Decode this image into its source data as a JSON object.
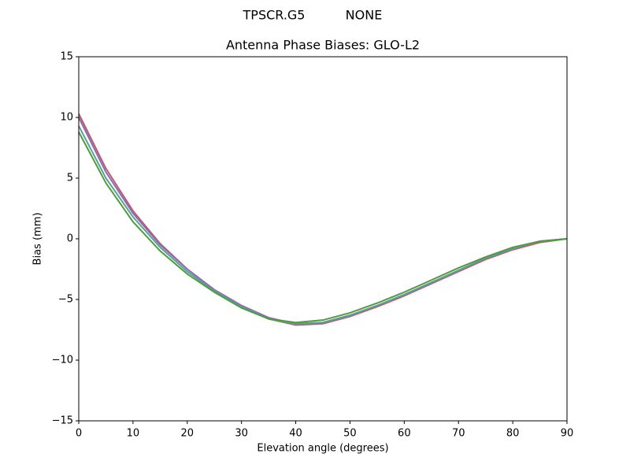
{
  "chart_data": {
    "type": "line",
    "suptitle_left": "TPSCR.G5",
    "suptitle_right": "NONE",
    "title": "Antenna Phase Biases: GLO-L2",
    "x_label": "Elevation angle (degrees)",
    "y_label": "Bias (mm)",
    "x": [
      0,
      5,
      10,
      15,
      20,
      25,
      30,
      35,
      40,
      45,
      50,
      55,
      60,
      65,
      70,
      75,
      80,
      85,
      90
    ],
    "series": [
      {
        "color": "#c05a6e",
        "values": [
          10.3,
          5.8,
          2.3,
          -0.4,
          -2.5,
          -4.2,
          -5.5,
          -6.6,
          -7.1,
          -7.0,
          -6.4,
          -5.6,
          -4.7,
          -3.7,
          -2.7,
          -1.7,
          -0.9,
          -0.3,
          0
        ]
      },
      {
        "color": "#8c6bb1",
        "values": [
          10.0,
          5.5,
          2.1,
          -0.5,
          -2.5,
          -4.2,
          -5.5,
          -6.5,
          -7.0,
          -6.9,
          -6.3,
          -5.5,
          -4.6,
          -3.6,
          -2.6,
          -1.6,
          -0.8,
          -0.2,
          0
        ]
      },
      {
        "color": "#5a9e9e",
        "values": [
          9.3,
          5.0,
          1.8,
          -0.7,
          -2.7,
          -4.3,
          -5.6,
          -6.6,
          -7.0,
          -6.9,
          -6.3,
          -5.5,
          -4.6,
          -3.6,
          -2.6,
          -1.6,
          -0.8,
          -0.2,
          0
        ]
      },
      {
        "color": "#4c9e3a",
        "values": [
          8.8,
          4.6,
          1.4,
          -1.0,
          -2.9,
          -4.4,
          -5.7,
          -6.6,
          -6.9,
          -6.7,
          -6.1,
          -5.3,
          -4.4,
          -3.4,
          -2.4,
          -1.5,
          -0.7,
          -0.2,
          0
        ]
      }
    ],
    "xlim": [
      0,
      90
    ],
    "xticks": [
      0,
      10,
      20,
      30,
      40,
      50,
      60,
      70,
      80,
      90
    ],
    "ylim": [
      -15,
      15
    ],
    "yticks": [
      {
        "value": -15,
        "label": "−15"
      },
      {
        "value": -10,
        "label": "−10"
      },
      {
        "value": -5,
        "label": "−5"
      },
      0,
      5,
      10,
      15
    ],
    "grid": false
  }
}
